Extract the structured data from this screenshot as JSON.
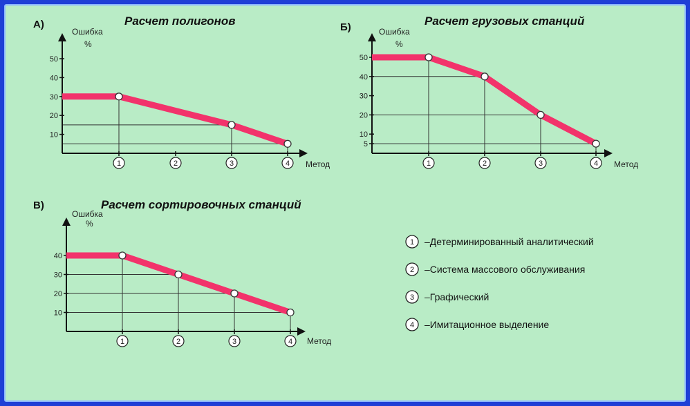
{
  "chart_data": [
    {
      "type": "line",
      "letter": "А)",
      "title": "Расчет полигонов",
      "ylabel": "Ошибка",
      "yunit": "%",
      "xlabel": "Метод",
      "y_ticks": [
        "50",
        "40",
        "30",
        "20",
        "10"
      ],
      "x_ticks": [
        "1",
        "2",
        "3",
        "4"
      ],
      "flat_start": 30,
      "points": [
        {
          "x": 1,
          "y": 30
        },
        {
          "x": 3,
          "y": 15
        },
        {
          "x": 4,
          "y": 5
        }
      ],
      "ylim": [
        0,
        55
      ]
    },
    {
      "type": "line",
      "letter": "Б)",
      "title": "Расчет грузовых станций",
      "ylabel": "Ошибка",
      "yunit": "%",
      "xlabel": "Метод",
      "y_ticks": [
        "50",
        "40",
        "30",
        "20",
        "10",
        "5"
      ],
      "x_ticks": [
        "1",
        "2",
        "3",
        "4"
      ],
      "flat_start": 50,
      "points": [
        {
          "x": 1,
          "y": 50
        },
        {
          "x": 2,
          "y": 40
        },
        {
          "x": 3,
          "y": 20
        },
        {
          "x": 4,
          "y": 5
        }
      ],
      "ylim": [
        0,
        55
      ]
    },
    {
      "type": "line",
      "letter": "В)",
      "title": "Расчет сортировочных станций",
      "ylabel": "Ошибка",
      "yunit": "%",
      "xlabel": "Метод",
      "y_ticks": [
        "40",
        "30",
        "20",
        "10"
      ],
      "x_ticks": [
        "1",
        "2",
        "3",
        "4"
      ],
      "flat_start": 40,
      "points": [
        {
          "x": 1,
          "y": 40
        },
        {
          "x": 2,
          "y": 30
        },
        {
          "x": 3,
          "y": 20
        },
        {
          "x": 4,
          "y": 10
        }
      ],
      "ylim": [
        0,
        45
      ]
    }
  ],
  "legend": [
    {
      "num": "1",
      "label": "–Детерминированный аналитический"
    },
    {
      "num": "2",
      "label": "–Система массового обслуживания"
    },
    {
      "num": "3",
      "label": "–Графический"
    },
    {
      "num": "4",
      "label": "–Имитационное выделение"
    }
  ],
  "colors": {
    "line": "#f2336b",
    "axis": "#111111",
    "background": "#b9ecc6",
    "frame": "#1f3fd6"
  }
}
